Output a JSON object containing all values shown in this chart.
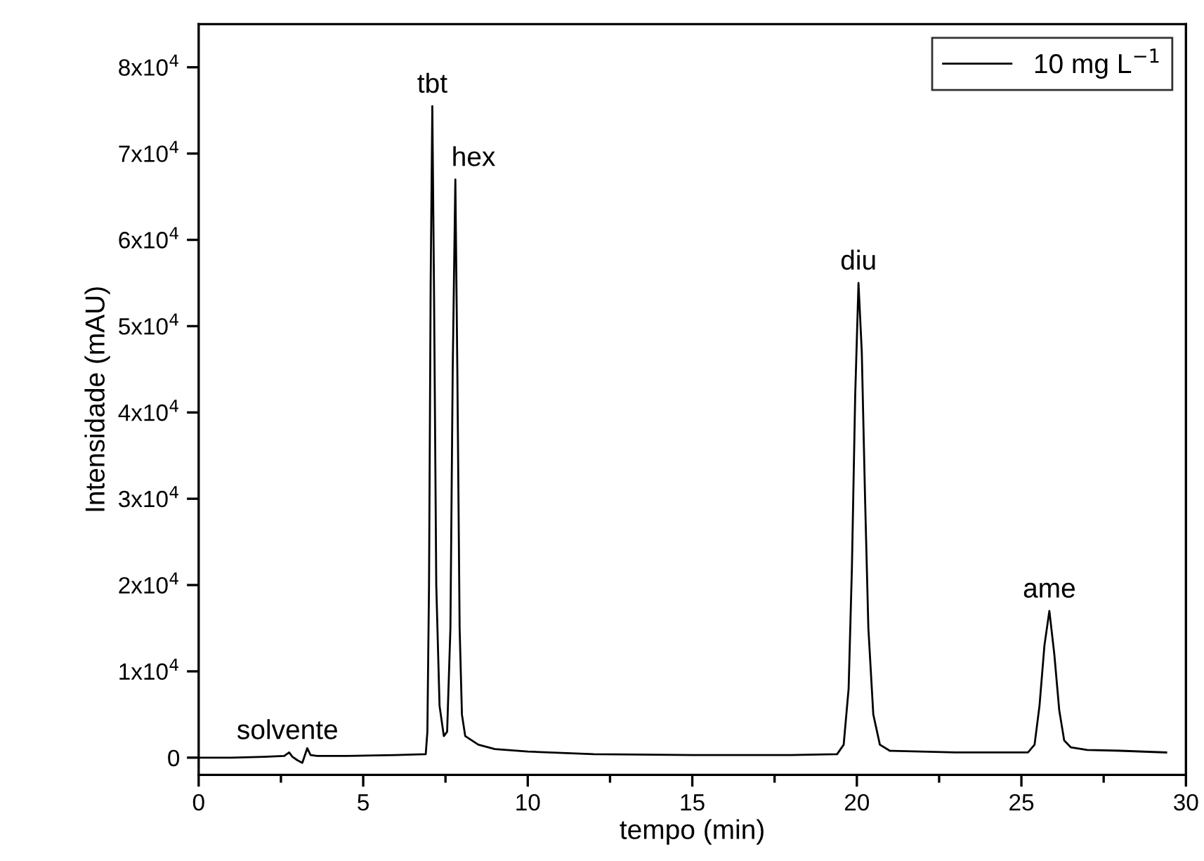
{
  "chart_data": {
    "type": "line",
    "xlabel": "tempo (min)",
    "ylabel": "Intensidade (mAU)",
    "xlim": [
      0,
      30
    ],
    "xticks": [
      0,
      5,
      10,
      15,
      20,
      25,
      30
    ],
    "ylim": [
      -2000,
      85000
    ],
    "yticks": [
      0,
      {
        "value": 10000,
        "label": "1x10$^{4}$"
      },
      {
        "value": 20000,
        "label": "2x10$^{4}$"
      },
      {
        "value": 30000,
        "label": "3x10$^{4}$"
      },
      {
        "value": 40000,
        "label": "4x10$^{4}$"
      },
      {
        "value": 50000,
        "label": "5x10$^{4}$"
      },
      {
        "value": 60000,
        "label": "6x10$^{4}$"
      },
      {
        "value": 70000,
        "label": "7x10$^{4}$"
      },
      {
        "value": 80000,
        "label": "8x10$^{4}$"
      }
    ],
    "grid": false,
    "legend": "top right",
    "marker": "none",
    "line_style": "solid",
    "series": [
      {
        "name": "10 mg L$^{−1}$",
        "color": "#000000",
        "x": [
          0,
          1,
          2,
          2.6,
          2.75,
          2.85,
          3.0,
          3.15,
          3.3,
          3.4,
          3.6,
          4.5,
          6.0,
          6.9,
          6.95,
          7.0,
          7.05,
          7.1,
          7.15,
          7.22,
          7.32,
          7.45,
          7.55,
          7.65,
          7.72,
          7.8,
          7.86,
          7.93,
          8.0,
          8.1,
          8.5,
          9,
          10,
          12,
          15,
          18,
          19.4,
          19.6,
          19.75,
          19.85,
          19.95,
          20.05,
          20.15,
          20.25,
          20.35,
          20.5,
          20.7,
          21,
          23,
          25.2,
          25.4,
          25.55,
          25.7,
          25.85,
          26.0,
          26.15,
          26.3,
          26.5,
          27,
          28,
          29.4
        ],
        "values": [
          0,
          0,
          100,
          200,
          600,
          100,
          -300,
          -600,
          1100,
          300,
          200,
          200,
          300,
          400,
          3000,
          20000,
          55000,
          75500,
          55000,
          20000,
          6000,
          2500,
          3000,
          15000,
          45000,
          67000,
          45000,
          15000,
          5000,
          2500,
          1500,
          1000,
          700,
          400,
          300,
          300,
          400,
          1500,
          8000,
          22000,
          42000,
          55000,
          47000,
          30000,
          15000,
          5000,
          1500,
          800,
          600,
          600,
          1500,
          6000,
          13000,
          17000,
          12000,
          5500,
          2000,
          1200,
          900,
          800,
          600
        ]
      }
    ],
    "annotations": [
      {
        "text": "solvente",
        "x": 2.7,
        "y": 600
      },
      {
        "text": "tbt",
        "x": 7.1,
        "y": 75500
      },
      {
        "text": "hex",
        "x": 7.8,
        "y": 67000
      },
      {
        "text": "diu",
        "x": 20.05,
        "y": 55000
      },
      {
        "text": "ame",
        "x": 25.85,
        "y": 17000
      }
    ]
  }
}
